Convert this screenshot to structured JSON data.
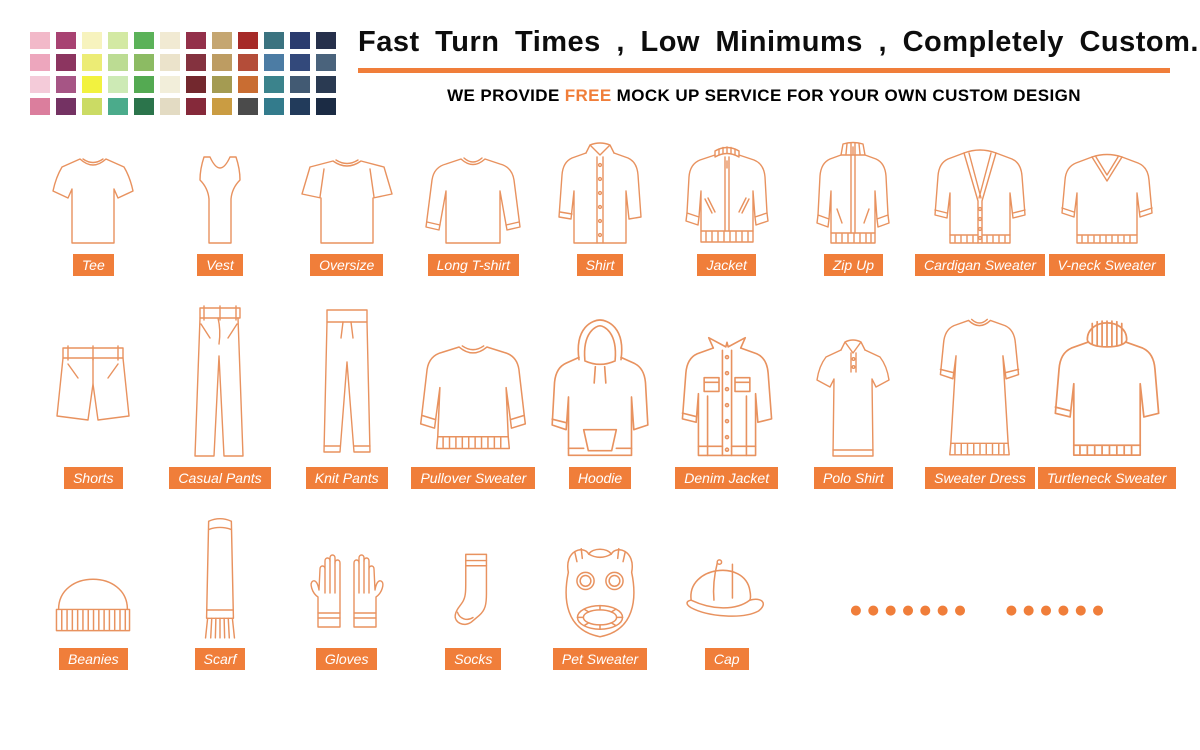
{
  "header": {
    "title": "Fast Turn Times , Low Minimums , Completely Custom.",
    "tagline": {
      "prefix": "WE PROVIDE",
      "highlight": "FREE",
      "suffix": "MOCK UP SERVICE FOR YOUR OWN CUSTOM DESIGN"
    }
  },
  "colors": {
    "accent_orange": "#F07E3A",
    "line_art_orange": "#E8925F",
    "badge_text": "#FFFFFF"
  },
  "palette": {
    "rows": [
      [
        "#F2B9C9",
        "#A84272",
        "#F7F3BE",
        "#D3E9A3",
        "#5BB259",
        "#F1EAD3",
        "#93304A",
        "#C5A671",
        "#A62A28",
        "#3B7380",
        "#2A3B6E",
        "#26304B"
      ],
      [
        "#EDA6BD",
        "#8C3560",
        "#ECEC75",
        "#BCDC93",
        "#8CBB63",
        "#EBE3CB",
        "#84323F",
        "#BD9C62",
        "#B44D39",
        "#4C7CA4",
        "#33497B",
        "#4A637C"
      ],
      [
        "#F4CBD9",
        "#A65585",
        "#F2F23F",
        "#CDEAB5",
        "#54AA52",
        "#F2EEDA",
        "#73282E",
        "#A49B52",
        "#C96D32",
        "#3B838C",
        "#425A73",
        "#2A3A52"
      ],
      [
        "#DB7E9D",
        "#743263",
        "#CBDB64",
        "#4BAB8B",
        "#2B744B",
        "#E3DBC3",
        "#85293A",
        "#CA9C42",
        "#4B4B4B",
        "#337B8C",
        "#223B5B",
        "#1B2B44"
      ]
    ]
  },
  "rows": [
    {
      "items": [
        {
          "label": "Tee",
          "icon": "tee"
        },
        {
          "label": "Vest",
          "icon": "vest"
        },
        {
          "label": "Oversize",
          "icon": "oversize"
        },
        {
          "label": "Long T-shirt",
          "icon": "long-t-shirt"
        },
        {
          "label": "Shirt",
          "icon": "shirt"
        },
        {
          "label": "Jacket",
          "icon": "jacket"
        },
        {
          "label": "Zip Up",
          "icon": "zip-up"
        },
        {
          "label": "Cardigan Sweater",
          "icon": "cardigan-sweater"
        },
        {
          "label": "V-neck Sweater",
          "icon": "v-neck-sweater"
        }
      ]
    },
    {
      "items": [
        {
          "label": "Shorts",
          "icon": "shorts"
        },
        {
          "label": "Casual Pants",
          "icon": "casual-pants"
        },
        {
          "label": "Knit Pants",
          "icon": "knit-pants"
        },
        {
          "label": "Pullover Sweater",
          "icon": "pullover-sweater"
        },
        {
          "label": "Hoodie",
          "icon": "hoodie"
        },
        {
          "label": "Denim Jacket",
          "icon": "denim-jacket"
        },
        {
          "label": "Polo Shirt",
          "icon": "polo-shirt"
        },
        {
          "label": "Sweater Dress",
          "icon": "sweater-dress"
        },
        {
          "label": "Turtleneck Sweater",
          "icon": "turtleneck-sweater"
        }
      ]
    },
    {
      "items": [
        {
          "label": "Beanies",
          "icon": "beanies"
        },
        {
          "label": "Scarf",
          "icon": "scarf"
        },
        {
          "label": "Gloves",
          "icon": "gloves"
        },
        {
          "label": "Socks",
          "icon": "socks"
        },
        {
          "label": "Pet Sweater",
          "icon": "pet-sweater"
        },
        {
          "label": "Cap",
          "icon": "cap"
        }
      ]
    }
  ],
  "dots": {
    "group1": "●●●●●●●",
    "group2": "●●●●●●"
  }
}
